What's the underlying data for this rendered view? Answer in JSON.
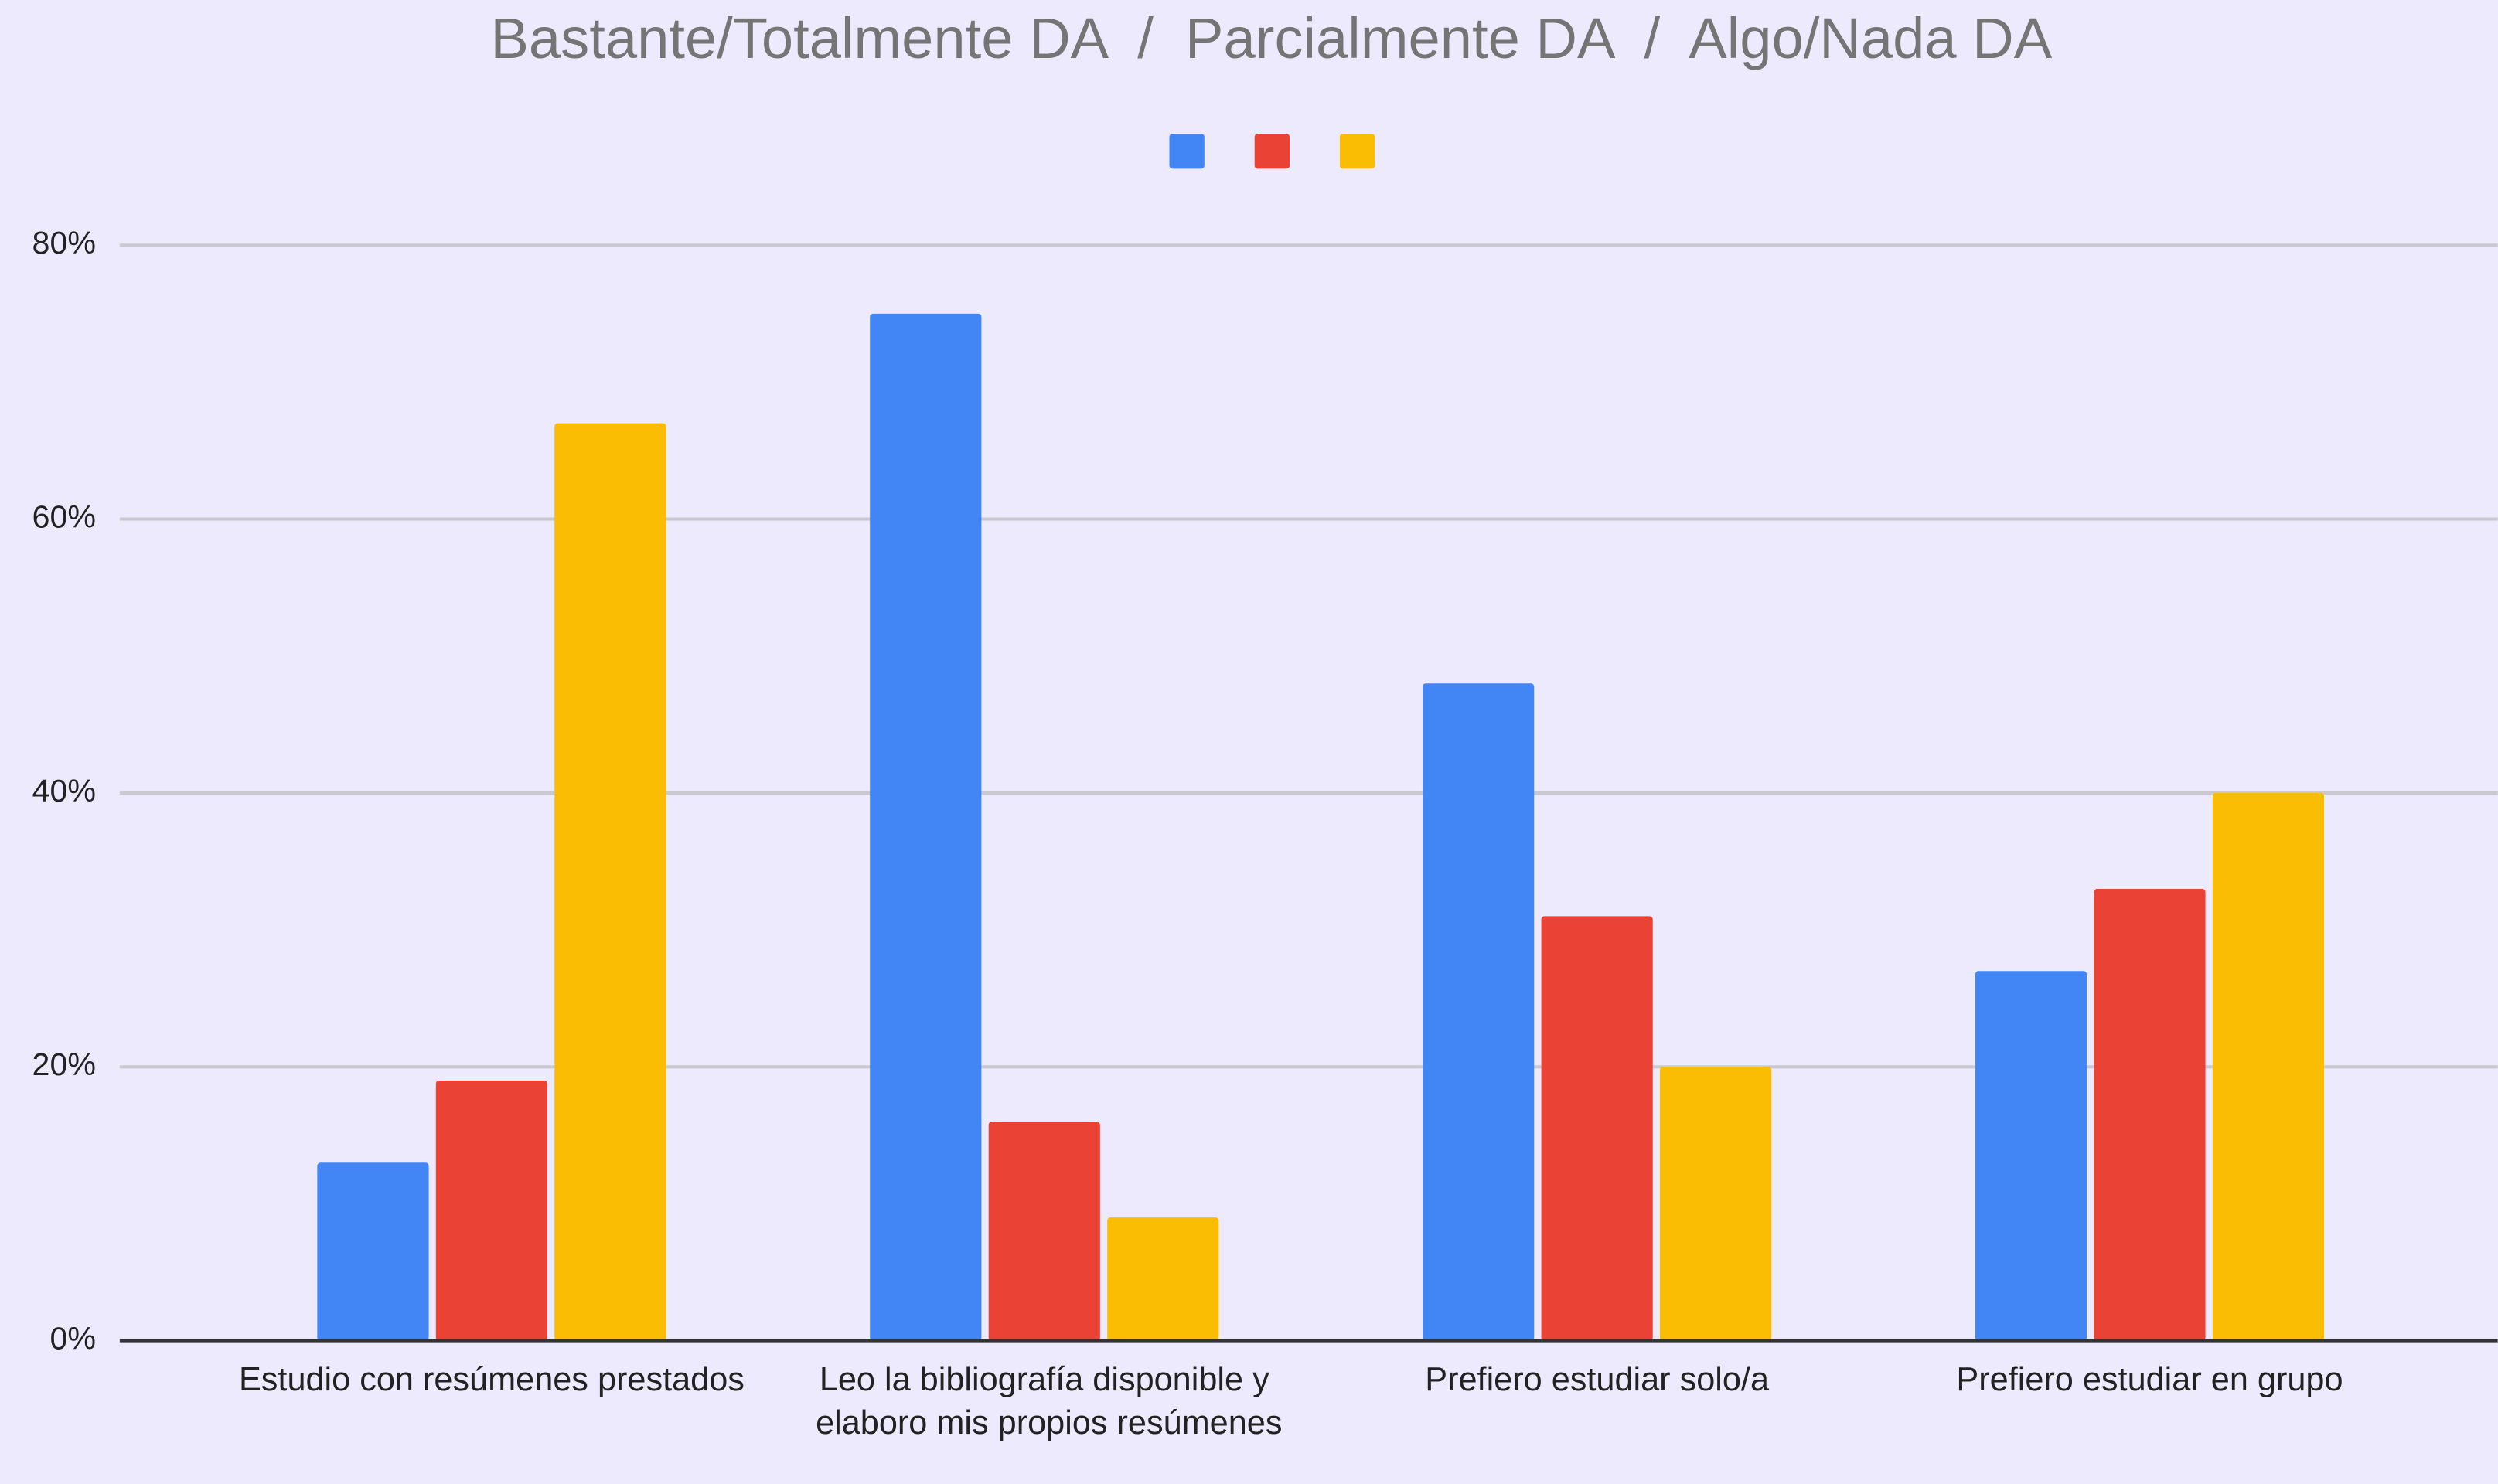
{
  "chart_data": {
    "type": "bar",
    "title": "Bastante/Totalmente DA  /  Parcialmente DA  /  Algo/Nada DA",
    "categories": [
      "Estudio con resúmenes prestados",
      "Leo la bibliografía disponible y elaboro mis propios resúmenes",
      "Prefiero estudiar solo/a",
      "Prefiero estudiar en grupo"
    ],
    "series": [
      {
        "color": "#4285f4",
        "values": [
          13,
          75,
          48,
          27
        ]
      },
      {
        "color": "#ea4335",
        "values": [
          19,
          16,
          31,
          33
        ]
      },
      {
        "color": "#fbbc04",
        "values": [
          67,
          9,
          20,
          40
        ]
      }
    ],
    "ylim": [
      0,
      80
    ],
    "yticks": [
      {
        "value": 0,
        "label": "0%"
      },
      {
        "value": 20,
        "label": "20%"
      },
      {
        "value": 40,
        "label": "40%"
      },
      {
        "value": 60,
        "label": "60%"
      },
      {
        "value": 80,
        "label": "80%"
      }
    ],
    "grid": true
  }
}
